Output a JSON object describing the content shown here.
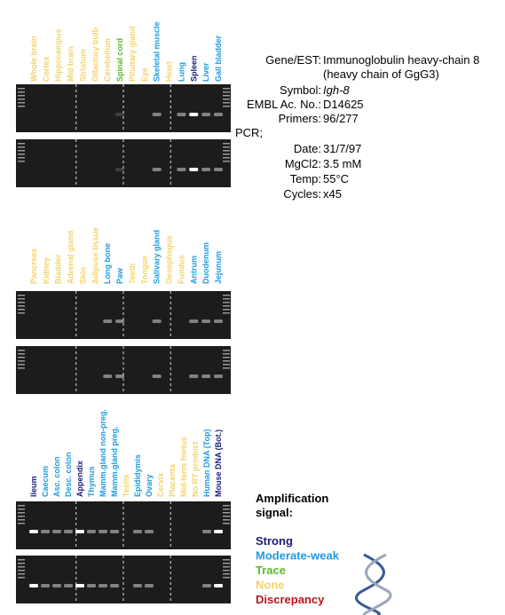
{
  "panels": [
    {
      "lanes": [
        {
          "label": "Whole brain",
          "color": "#f2d36b"
        },
        {
          "label": "Cortex",
          "color": "#f2d36b"
        },
        {
          "label": "Hippocampus",
          "color": "#f2d36b"
        },
        {
          "label": "Mid brain",
          "color": "#f2d36b"
        },
        {
          "label": "Striatum",
          "color": "#f2d36b"
        },
        {
          "label": "Olfactory bulb",
          "color": "#f2d36b"
        },
        {
          "label": "Cerebellum",
          "color": "#f2d36b"
        },
        {
          "label": "Spinal cord",
          "color": "#5cb82e"
        },
        {
          "label": "Pituitary gland",
          "color": "#f2d36b"
        },
        {
          "label": "Eye",
          "color": "#f2d36b"
        },
        {
          "label": "Skeletal muscle",
          "color": "#1e9be0"
        },
        {
          "label": "Heart",
          "color": "#f2d36b"
        },
        {
          "label": "Lung",
          "color": "#1e9be0"
        },
        {
          "label": "Spleen",
          "color": "#1a1a7a"
        },
        {
          "label": "Liver",
          "color": "#1e9be0"
        },
        {
          "label": "Gall bladder",
          "color": "#1e9be0"
        }
      ]
    },
    {
      "lanes": [
        {
          "label": "Pancreas",
          "color": "#f2d36b"
        },
        {
          "label": "Kidney",
          "color": "#f2d36b"
        },
        {
          "label": "Bladder",
          "color": "#f2d36b"
        },
        {
          "label": "Adrenal gland",
          "color": "#f2d36b"
        },
        {
          "label": "Skin",
          "color": "#f2d36b"
        },
        {
          "label": "Adipose tissue",
          "color": "#f2d36b"
        },
        {
          "label": "Long bone",
          "color": "#1e9be0"
        },
        {
          "label": "Paw",
          "color": "#1e9be0"
        },
        {
          "label": "Teeth",
          "color": "#f2d36b"
        },
        {
          "label": "Tongue",
          "color": "#f2d36b"
        },
        {
          "label": "Salivary gland",
          "color": "#1e9be0"
        },
        {
          "label": "Oesophagus",
          "color": "#f2d36b"
        },
        {
          "label": "Fundus",
          "color": "#f2d36b"
        },
        {
          "label": "Antrum",
          "color": "#1e9be0"
        },
        {
          "label": "Duodenum",
          "color": "#1e9be0"
        },
        {
          "label": "Jejunum",
          "color": "#1e9be0"
        }
      ]
    },
    {
      "lanes": [
        {
          "label": "Ileum",
          "color": "#1a1a7a"
        },
        {
          "label": "Caecum",
          "color": "#1e9be0"
        },
        {
          "label": "Asc. colon",
          "color": "#1e9be0"
        },
        {
          "label": "Desc. colon",
          "color": "#1e9be0"
        },
        {
          "label": "Appendix",
          "color": "#1a1a7a"
        },
        {
          "label": "Thymus",
          "color": "#1e9be0"
        },
        {
          "label": "Mamm.gland non-preg.",
          "color": "#1e9be0"
        },
        {
          "label": "Mamm.gland preg.",
          "color": "#1e9be0"
        },
        {
          "label": "Testis",
          "color": "#f2d36b"
        },
        {
          "label": "Epididymis",
          "color": "#1e9be0"
        },
        {
          "label": "Ovary",
          "color": "#1e9be0"
        },
        {
          "label": "Cervix",
          "color": "#f2d36b"
        },
        {
          "label": "Placenta",
          "color": "#f2d36b"
        },
        {
          "label": "Mid-term foetus",
          "color": "#f2d36b"
        },
        {
          "label": "No RT product",
          "color": "#f2d36b"
        },
        {
          "label": "Human DNA (Top)",
          "color": "#1e9be0"
        },
        {
          "label": "Mouse DNA (Bot.)",
          "color": "#1a1a7a"
        }
      ]
    }
  ],
  "info": {
    "rows": [
      {
        "label": "Gene/EST:",
        "value": "Immunoglobulin heavy-chain 8 (heavy chain of GgG3)"
      },
      {
        "label": "Symbol:",
        "value": "Igh-8"
      },
      {
        "label": "EMBL Ac. No.:",
        "value": "D14625"
      },
      {
        "label": "Primers:",
        "value": "96/277"
      }
    ],
    "pcr_heading": "PCR;",
    "pcr_rows": [
      {
        "label": "Date:",
        "value": "31/7/97"
      },
      {
        "label": "MgCl2:",
        "value": "3.5 mM"
      },
      {
        "label": "Temp:",
        "value": "55°C"
      },
      {
        "label": "Cycles:",
        "value": "x45"
      }
    ]
  },
  "legend": {
    "title": "Amplification signal:",
    "items": [
      {
        "label": "Strong",
        "color": "#1a1a7a"
      },
      {
        "label": "Moderate-weak",
        "color": "#1e9be0"
      },
      {
        "label": "Trace",
        "color": "#5cb82e"
      },
      {
        "label": "None",
        "color": "#f2d36b"
      },
      {
        "label": "Discrepancy",
        "color": "#c0101a"
      }
    ]
  }
}
